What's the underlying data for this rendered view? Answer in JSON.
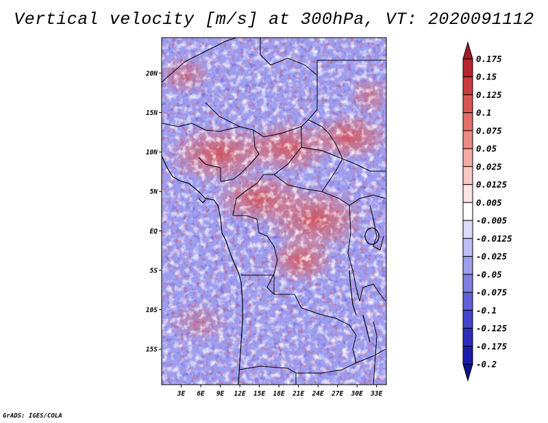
{
  "title": "Vertical velocity [m/s] at 300hPa, VT: 2020091112",
  "footer": "GrADS: IGES/COLA",
  "map": {
    "lon_range": [
      0,
      34.5
    ],
    "lat_range": [
      -19.5,
      24.5
    ],
    "lat_ticks": [
      "20N",
      "15N",
      "10N",
      "5N",
      "EQ",
      "5S",
      "10S",
      "15S"
    ],
    "lat_values": [
      20,
      15,
      10,
      5,
      0,
      -5,
      -10,
      -15
    ],
    "lon_ticks": [
      "3E",
      "6E",
      "9E",
      "12E",
      "15E",
      "18E",
      "21E",
      "24E",
      "27E",
      "30E",
      "33E"
    ],
    "lon_values": [
      3,
      6,
      9,
      12,
      15,
      18,
      21,
      24,
      27,
      30,
      33
    ]
  },
  "colorbar": {
    "labels": [
      "0.175",
      "0.15",
      "0.125",
      "0.1",
      "0.075",
      "0.05",
      "0.025",
      "0.0125",
      "0.005",
      "-0.005",
      "-0.0125",
      "-0.025",
      "-0.05",
      "-0.075",
      "-0.1",
      "-0.125",
      "-0.175",
      "-0.2"
    ],
    "colors": [
      "#a01a24",
      "#b8242c",
      "#cc3a3c",
      "#da5450",
      "#e46e68",
      "#ec8a84",
      "#f3aaa4",
      "#f8c8c4",
      "#fce4e2",
      "#ffffff",
      "#dcdcfa",
      "#bebef4",
      "#9e9eee",
      "#7e7ee6",
      "#6060da",
      "#4444cc",
      "#2e2ebc",
      "#1c1caa",
      "#10108e"
    ]
  }
}
